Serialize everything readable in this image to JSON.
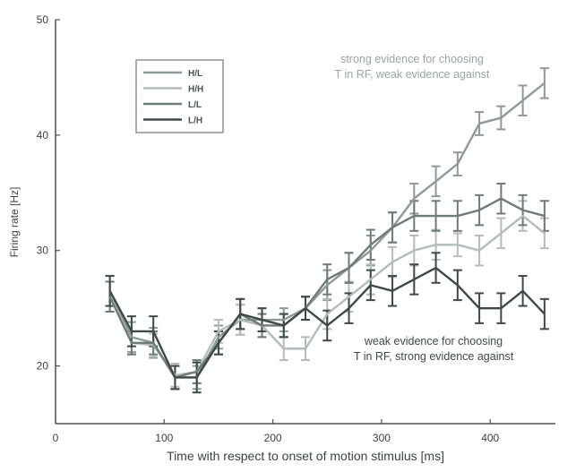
{
  "chart_data": {
    "type": "line",
    "xlabel": "Time with respect to onset of motion stimulus [ms]",
    "ylabel": "Firing rate [Hz]",
    "xlim": [
      0,
      460
    ],
    "ylim": [
      15,
      50
    ],
    "x_ticks": [
      0,
      100,
      200,
      300,
      400
    ],
    "y_ticks": [
      20,
      30,
      40,
      50
    ],
    "grid": false,
    "legend_position": "top-left",
    "x": [
      50,
      70,
      90,
      110,
      130,
      150,
      170,
      190,
      210,
      230,
      250,
      270,
      290,
      310,
      330,
      350,
      370,
      390,
      410,
      430,
      450
    ],
    "series": [
      {
        "name": "H/L",
        "color": "#8e9a96",
        "values": [
          26.5,
          22.5,
          22.0,
          19.0,
          19.0,
          22.5,
          24.0,
          24.0,
          24.0,
          25.0,
          27.0,
          28.5,
          30.0,
          32.0,
          34.5,
          36.0,
          37.5,
          41.0,
          41.5,
          43.0,
          44.5
        ],
        "errors": [
          1.3,
          1.3,
          1.3,
          1.0,
          1.0,
          1.0,
          1.3,
          1.0,
          1.0,
          1.0,
          1.3,
          1.3,
          1.3,
          1.3,
          1.3,
          1.3,
          1.0,
          1.0,
          1.0,
          1.3,
          1.3
        ]
      },
      {
        "name": "H/H",
        "color": "#b4bcbb",
        "values": [
          26.0,
          22.0,
          21.8,
          19.2,
          19.5,
          23.0,
          24.0,
          23.5,
          21.5,
          21.5,
          24.5,
          26.0,
          27.5,
          29.0,
          30.0,
          30.5,
          30.5,
          30.0,
          31.5,
          33.0,
          31.5
        ],
        "errors": [
          1.3,
          1.0,
          1.0,
          1.0,
          1.0,
          1.0,
          1.3,
          1.0,
          1.0,
          1.0,
          1.3,
          1.3,
          1.3,
          1.3,
          1.3,
          1.3,
          1.0,
          1.3,
          1.3,
          1.3,
          1.3
        ]
      },
      {
        "name": "L/L",
        "color": "#6e7c77",
        "values": [
          26.0,
          22.0,
          22.0,
          19.0,
          19.5,
          22.0,
          24.5,
          23.5,
          23.5,
          25.0,
          27.5,
          28.5,
          30.5,
          32.0,
          33.0,
          33.0,
          33.0,
          33.5,
          34.5,
          33.5,
          33.0
        ],
        "errors": [
          1.3,
          1.0,
          1.0,
          1.0,
          1.0,
          1.0,
          1.3,
          1.0,
          1.0,
          1.0,
          1.3,
          1.3,
          1.3,
          1.3,
          1.3,
          1.3,
          1.3,
          1.3,
          1.3,
          1.3,
          1.3
        ]
      },
      {
        "name": "L/H",
        "color": "#3f4a47",
        "values": [
          26.5,
          23.0,
          23.0,
          19.0,
          19.0,
          22.0,
          24.5,
          24.0,
          23.5,
          25.0,
          23.5,
          25.0,
          27.0,
          26.5,
          27.5,
          28.5,
          27.0,
          25.0,
          25.0,
          26.5,
          24.5
        ],
        "errors": [
          1.3,
          1.3,
          1.3,
          1.0,
          1.3,
          1.0,
          1.3,
          1.0,
          1.0,
          1.0,
          1.3,
          1.3,
          1.3,
          1.3,
          1.3,
          1.3,
          1.3,
          1.3,
          1.3,
          1.3,
          1.3
        ]
      }
    ],
    "annotations": [
      {
        "lines": [
          "strong evidence for choosing",
          "T in RF, weak evidence against"
        ],
        "color": "#9aa6a2"
      },
      {
        "lines": [
          "weak evidence for choosing",
          "T in RF, strong evidence against"
        ],
        "color": "#3f4a47"
      }
    ]
  }
}
